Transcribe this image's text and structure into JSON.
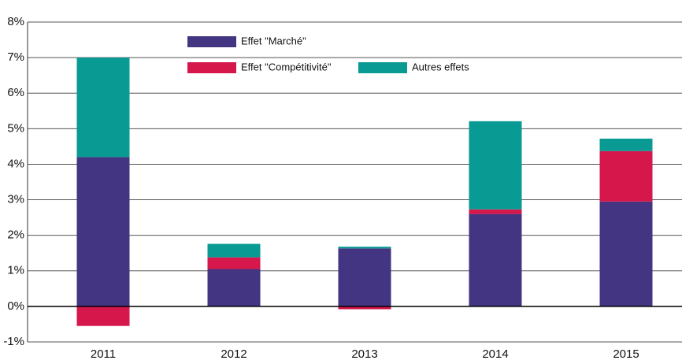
{
  "chart_data": {
    "type": "bar",
    "stacked": true,
    "categories": [
      "2011",
      "2012",
      "2013",
      "2014",
      "2015"
    ],
    "series": [
      {
        "name": "Effet \"Marché\"",
        "color": "#433581",
        "values": [
          4.2,
          1.05,
          1.63,
          2.6,
          2.95
        ]
      },
      {
        "name": "Effet \"Compétitivité\"",
        "color": "#d6174c",
        "values": [
          -0.55,
          0.33,
          -0.08,
          0.13,
          1.42
        ]
      },
      {
        "name": "Autres effets",
        "color": "#0a9a94",
        "values": [
          2.8,
          0.38,
          0.05,
          2.48,
          0.35
        ]
      }
    ],
    "ylim": [
      -1,
      8
    ],
    "yticks": [
      {
        "value": -1,
        "label": "-1%"
      },
      {
        "value": 0,
        "label": "0%"
      },
      {
        "value": 1,
        "label": "1%"
      },
      {
        "value": 2,
        "label": "2%"
      },
      {
        "value": 3,
        "label": "3%"
      },
      {
        "value": 4,
        "label": "4%"
      },
      {
        "value": 5,
        "label": "5%"
      },
      {
        "value": 6,
        "label": "6%"
      },
      {
        "value": 7,
        "label": "7%"
      },
      {
        "value": 8,
        "label": "8%"
      }
    ],
    "grid": true
  }
}
